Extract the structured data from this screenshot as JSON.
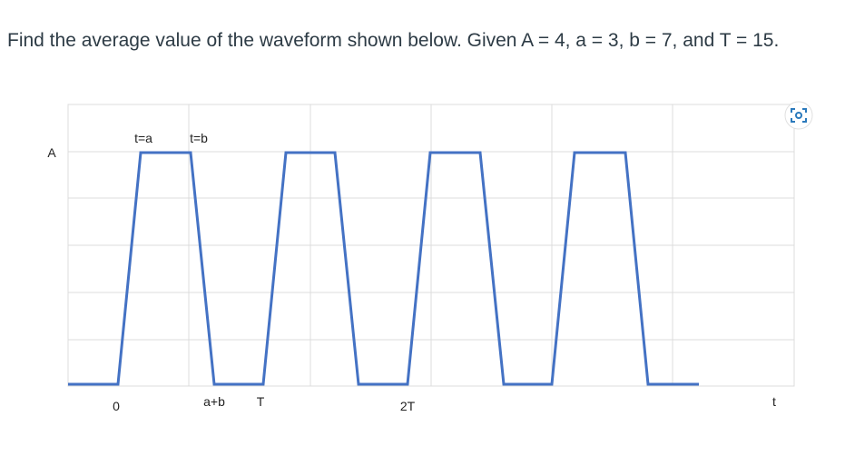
{
  "question": "Find the average value of the waveform shown below. Given A = 4, a = 3, b = 7, and T = 15.",
  "figure": {
    "y_label": "A",
    "top_labels": [
      "t=a",
      "t=b"
    ],
    "x_labels": [
      "0",
      "a+b",
      "T",
      "2T"
    ],
    "axis_label": "t"
  }
}
